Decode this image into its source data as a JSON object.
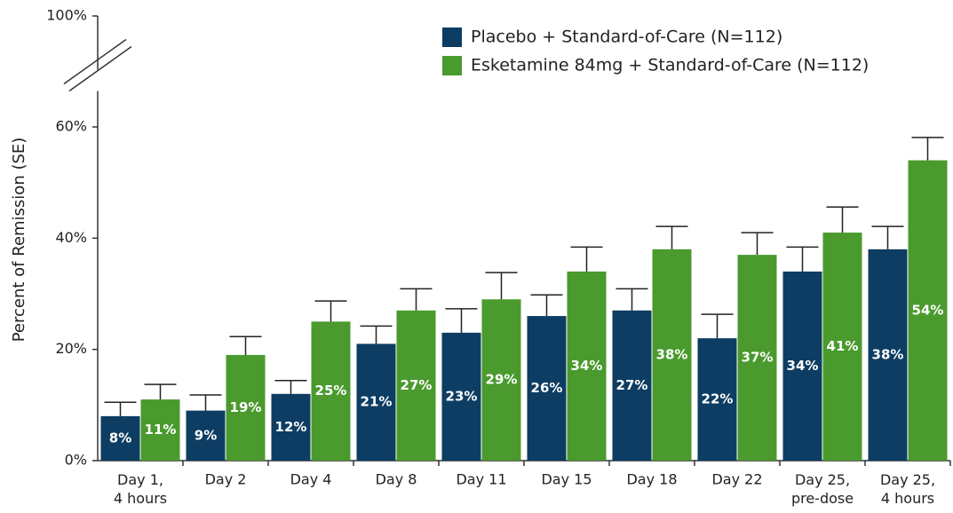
{
  "chart_data": {
    "type": "bar",
    "y_label": "Percent of Remission (SE)",
    "categories": [
      "Day 1,\n4 hours",
      "Day 2",
      "Day 4",
      "Day 8",
      "Day 11",
      "Day 15",
      "Day 18",
      "Day 22",
      "Day 25,\npre-dose",
      "Day 25,\n4 hours"
    ],
    "series": [
      {
        "name": "Placebo + Standard-of-Care (N=112)",
        "color": "#0d3d63",
        "values": [
          8,
          9,
          12,
          21,
          23,
          26,
          27,
          22,
          34,
          38
        ],
        "value_labels": [
          "8%",
          "9%",
          "12%",
          "21%",
          "23%",
          "26%",
          "27%",
          "22%",
          "34%",
          "38%"
        ],
        "errors": [
          2.5,
          2.8,
          2.4,
          3.2,
          4.3,
          3.8,
          3.9,
          4.3,
          4.4,
          4.1
        ]
      },
      {
        "name": "Esketamine 84mg + Standard-of-Care (N=112)",
        "color": "#4a9a2e",
        "values": [
          11,
          19,
          25,
          27,
          29,
          34,
          38,
          37,
          41,
          54
        ],
        "value_labels": [
          "11%",
          "19%",
          "25%",
          "27%",
          "29%",
          "34%",
          "38%",
          "37%",
          "41%",
          "54%"
        ],
        "errors": [
          2.7,
          3.3,
          3.7,
          3.9,
          4.8,
          4.4,
          4.1,
          4.0,
          4.6,
          4.1
        ]
      }
    ],
    "ylim": [
      0,
      100
    ],
    "yticks": [
      {
        "value": 0,
        "label": "0%"
      },
      {
        "value": 20,
        "label": "20%"
      },
      {
        "value": 40,
        "label": "40%"
      },
      {
        "value": 60,
        "label": "60%"
      },
      {
        "value": 100,
        "label": "100%"
      }
    ],
    "axis_break": [
      60,
      100
    ],
    "legend": "top-right",
    "grid": false
  }
}
